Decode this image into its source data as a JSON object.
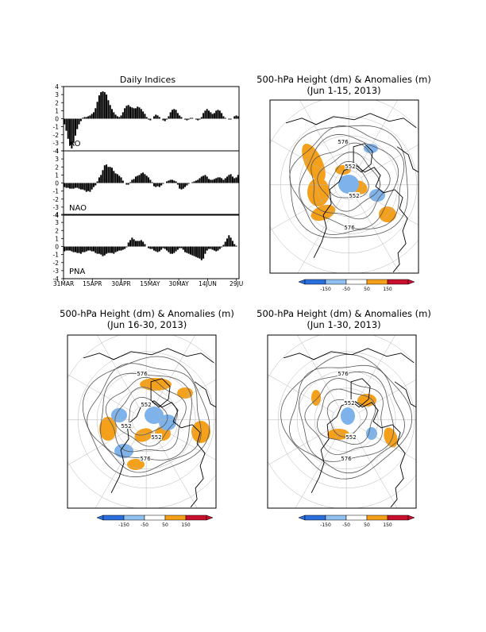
{
  "chart_data": [
    {
      "type": "bar",
      "title": "Daily Indices",
      "x_tick_labels": [
        "31MAR",
        "15APR",
        "30APR",
        "15MAY",
        "30MAY",
        "14JUN",
        "29JU"
      ],
      "y_tick_labels": [
        "4",
        "3",
        "2",
        "1",
        "0",
        "-1",
        "-2",
        "-3",
        "-4"
      ],
      "ylim": [
        -4,
        4
      ],
      "colors": {
        "bars": "#000000"
      },
      "panels": [
        {
          "name": "AO",
          "values": [
            -0.7,
            -1.5,
            -2.5,
            -3.3,
            -3.7,
            -3.0,
            -2.1,
            -1.3,
            -0.7,
            -0.3,
            0.1,
            0.2,
            0.2,
            0.3,
            0.4,
            0.6,
            0.8,
            1.3,
            2.1,
            2.9,
            3.3,
            3.4,
            3.3,
            3.0,
            2.3,
            1.7,
            1.2,
            0.8,
            0.5,
            0.3,
            0.2,
            0.4,
            0.8,
            1.3,
            1.6,
            1.7,
            1.5,
            1.4,
            1.3,
            1.3,
            1.5,
            1.4,
            1.2,
            0.9,
            0.6,
            0.2,
            -0.1,
            -0.2,
            0.0,
            0.3,
            0.5,
            0.4,
            0.2,
            0.0,
            -0.2,
            -0.3,
            -0.1,
            0.3,
            0.8,
            1.1,
            1.2,
            1.1,
            0.7,
            0.4,
            0.2,
            0.0,
            -0.1,
            -0.2,
            -0.1,
            0.1,
            0.1,
            0.0,
            -0.1,
            -0.2,
            -0.1,
            0.2,
            0.7,
            1.0,
            1.2,
            1.0,
            0.8,
            0.6,
            0.7,
            1.0,
            1.1,
            1.0,
            0.7,
            0.3,
            0.1,
            0.0,
            -0.1,
            -0.1,
            0.0,
            0.3,
            0.4,
            0.3
          ]
        },
        {
          "name": "NAO",
          "values": [
            -0.5,
            -0.6,
            -0.6,
            -0.7,
            -0.7,
            -0.7,
            -0.6,
            -0.6,
            -0.7,
            -0.8,
            -0.8,
            -0.9,
            -1.1,
            -1.0,
            -1.1,
            -0.8,
            -0.5,
            -0.3,
            0.2,
            0.7,
            1.0,
            1.6,
            2.2,
            2.3,
            2.0,
            2.0,
            1.9,
            1.5,
            1.2,
            1.1,
            0.9,
            0.7,
            0.3,
            0.0,
            -0.2,
            -0.2,
            0.1,
            0.4,
            0.5,
            0.8,
            0.9,
            1.0,
            1.2,
            1.3,
            1.1,
            0.9,
            0.7,
            0.4,
            0.1,
            -0.4,
            -0.5,
            -0.4,
            -0.5,
            -0.3,
            -0.1,
            0.0,
            0.2,
            0.3,
            0.4,
            0.4,
            0.3,
            0.2,
            -0.2,
            -0.7,
            -0.8,
            -0.7,
            -0.5,
            -0.3,
            -0.1,
            0.0,
            0.1,
            0.2,
            0.3,
            0.4,
            0.6,
            0.8,
            0.9,
            1.0,
            0.8,
            0.5,
            0.4,
            0.4,
            0.5,
            0.6,
            0.7,
            0.7,
            0.6,
            0.4,
            0.6,
            0.8,
            1.0,
            1.1,
            0.8,
            0.6,
            0.7,
            1.0
          ]
        },
        {
          "name": "PNA",
          "values": [
            -0.6,
            -0.5,
            -0.5,
            -0.5,
            -0.6,
            -0.7,
            -0.7,
            -0.8,
            -0.8,
            -0.9,
            -0.7,
            -0.7,
            -0.6,
            -0.5,
            -0.5,
            -0.6,
            -0.6,
            -0.8,
            -0.9,
            -0.9,
            -1.0,
            -1.2,
            -1.1,
            -0.9,
            -0.8,
            -0.8,
            -0.8,
            -0.9,
            -0.7,
            -0.6,
            -0.5,
            -0.5,
            -0.4,
            -0.3,
            -0.1,
            0.5,
            0.8,
            1.1,
            0.9,
            0.7,
            0.7,
            0.7,
            0.8,
            0.6,
            0.3,
            0.0,
            -0.2,
            -0.3,
            -0.3,
            -0.5,
            -0.6,
            -0.7,
            -0.6,
            -0.4,
            -0.2,
            -0.3,
            -0.5,
            -0.7,
            -0.9,
            -0.9,
            -0.8,
            -0.6,
            -0.4,
            -0.2,
            -0.2,
            -0.4,
            -0.7,
            -0.8,
            -0.9,
            -1.0,
            -1.1,
            -1.2,
            -1.3,
            -1.4,
            -1.5,
            -1.7,
            -1.5,
            -0.9,
            -0.5,
            -0.3,
            -0.3,
            -0.4,
            -0.5,
            -0.6,
            -0.5,
            -0.3,
            -0.1,
            0.2,
            0.6,
            1.0,
            1.4,
            1.1,
            0.7,
            0.3,
            0.1,
            0.0
          ]
        }
      ]
    },
    {
      "type": "map",
      "title": "500-hPa Height (dm) & Anomalies (m)",
      "subtitle": "(Jun 1-15, 2013)",
      "contour_labels": [
        "576",
        "552",
        "552",
        "576"
      ],
      "colorbar": {
        "labels": [
          "-150",
          "-50",
          "50",
          "150"
        ],
        "colors": [
          "#2a6fdb",
          "#8fc0f0",
          "#ffffff",
          "#f5a01a",
          "#c8102e"
        ]
      }
    },
    {
      "type": "map",
      "title": "500-hPa Height (dm) & Anomalies (m)",
      "subtitle": "(Jun 16-30, 2013)",
      "contour_labels": [
        "576",
        "552",
        "552",
        "552",
        "576"
      ],
      "colorbar": {
        "labels": [
          "-150",
          "-50",
          "50",
          "150"
        ],
        "colors": [
          "#2a6fdb",
          "#8fc0f0",
          "#ffffff",
          "#f5a01a",
          "#c8102e"
        ]
      }
    },
    {
      "type": "map",
      "title": "500-hPa Height (dm) & Anomalies (m)",
      "subtitle": "(Jun 1-30, 2013)",
      "contour_labels": [
        "576",
        "552",
        "552",
        "576"
      ],
      "colorbar": {
        "labels": [
          "-150",
          "-50",
          "50",
          "150"
        ],
        "colors": [
          "#2a6fdb",
          "#8fc0f0",
          "#ffffff",
          "#f5a01a",
          "#c8102e"
        ]
      }
    }
  ],
  "colors": {
    "positive_anomaly": "#f5a01a",
    "negative_anomaly": "#7db2ea",
    "contour": "#555555",
    "coast": "#000000"
  }
}
